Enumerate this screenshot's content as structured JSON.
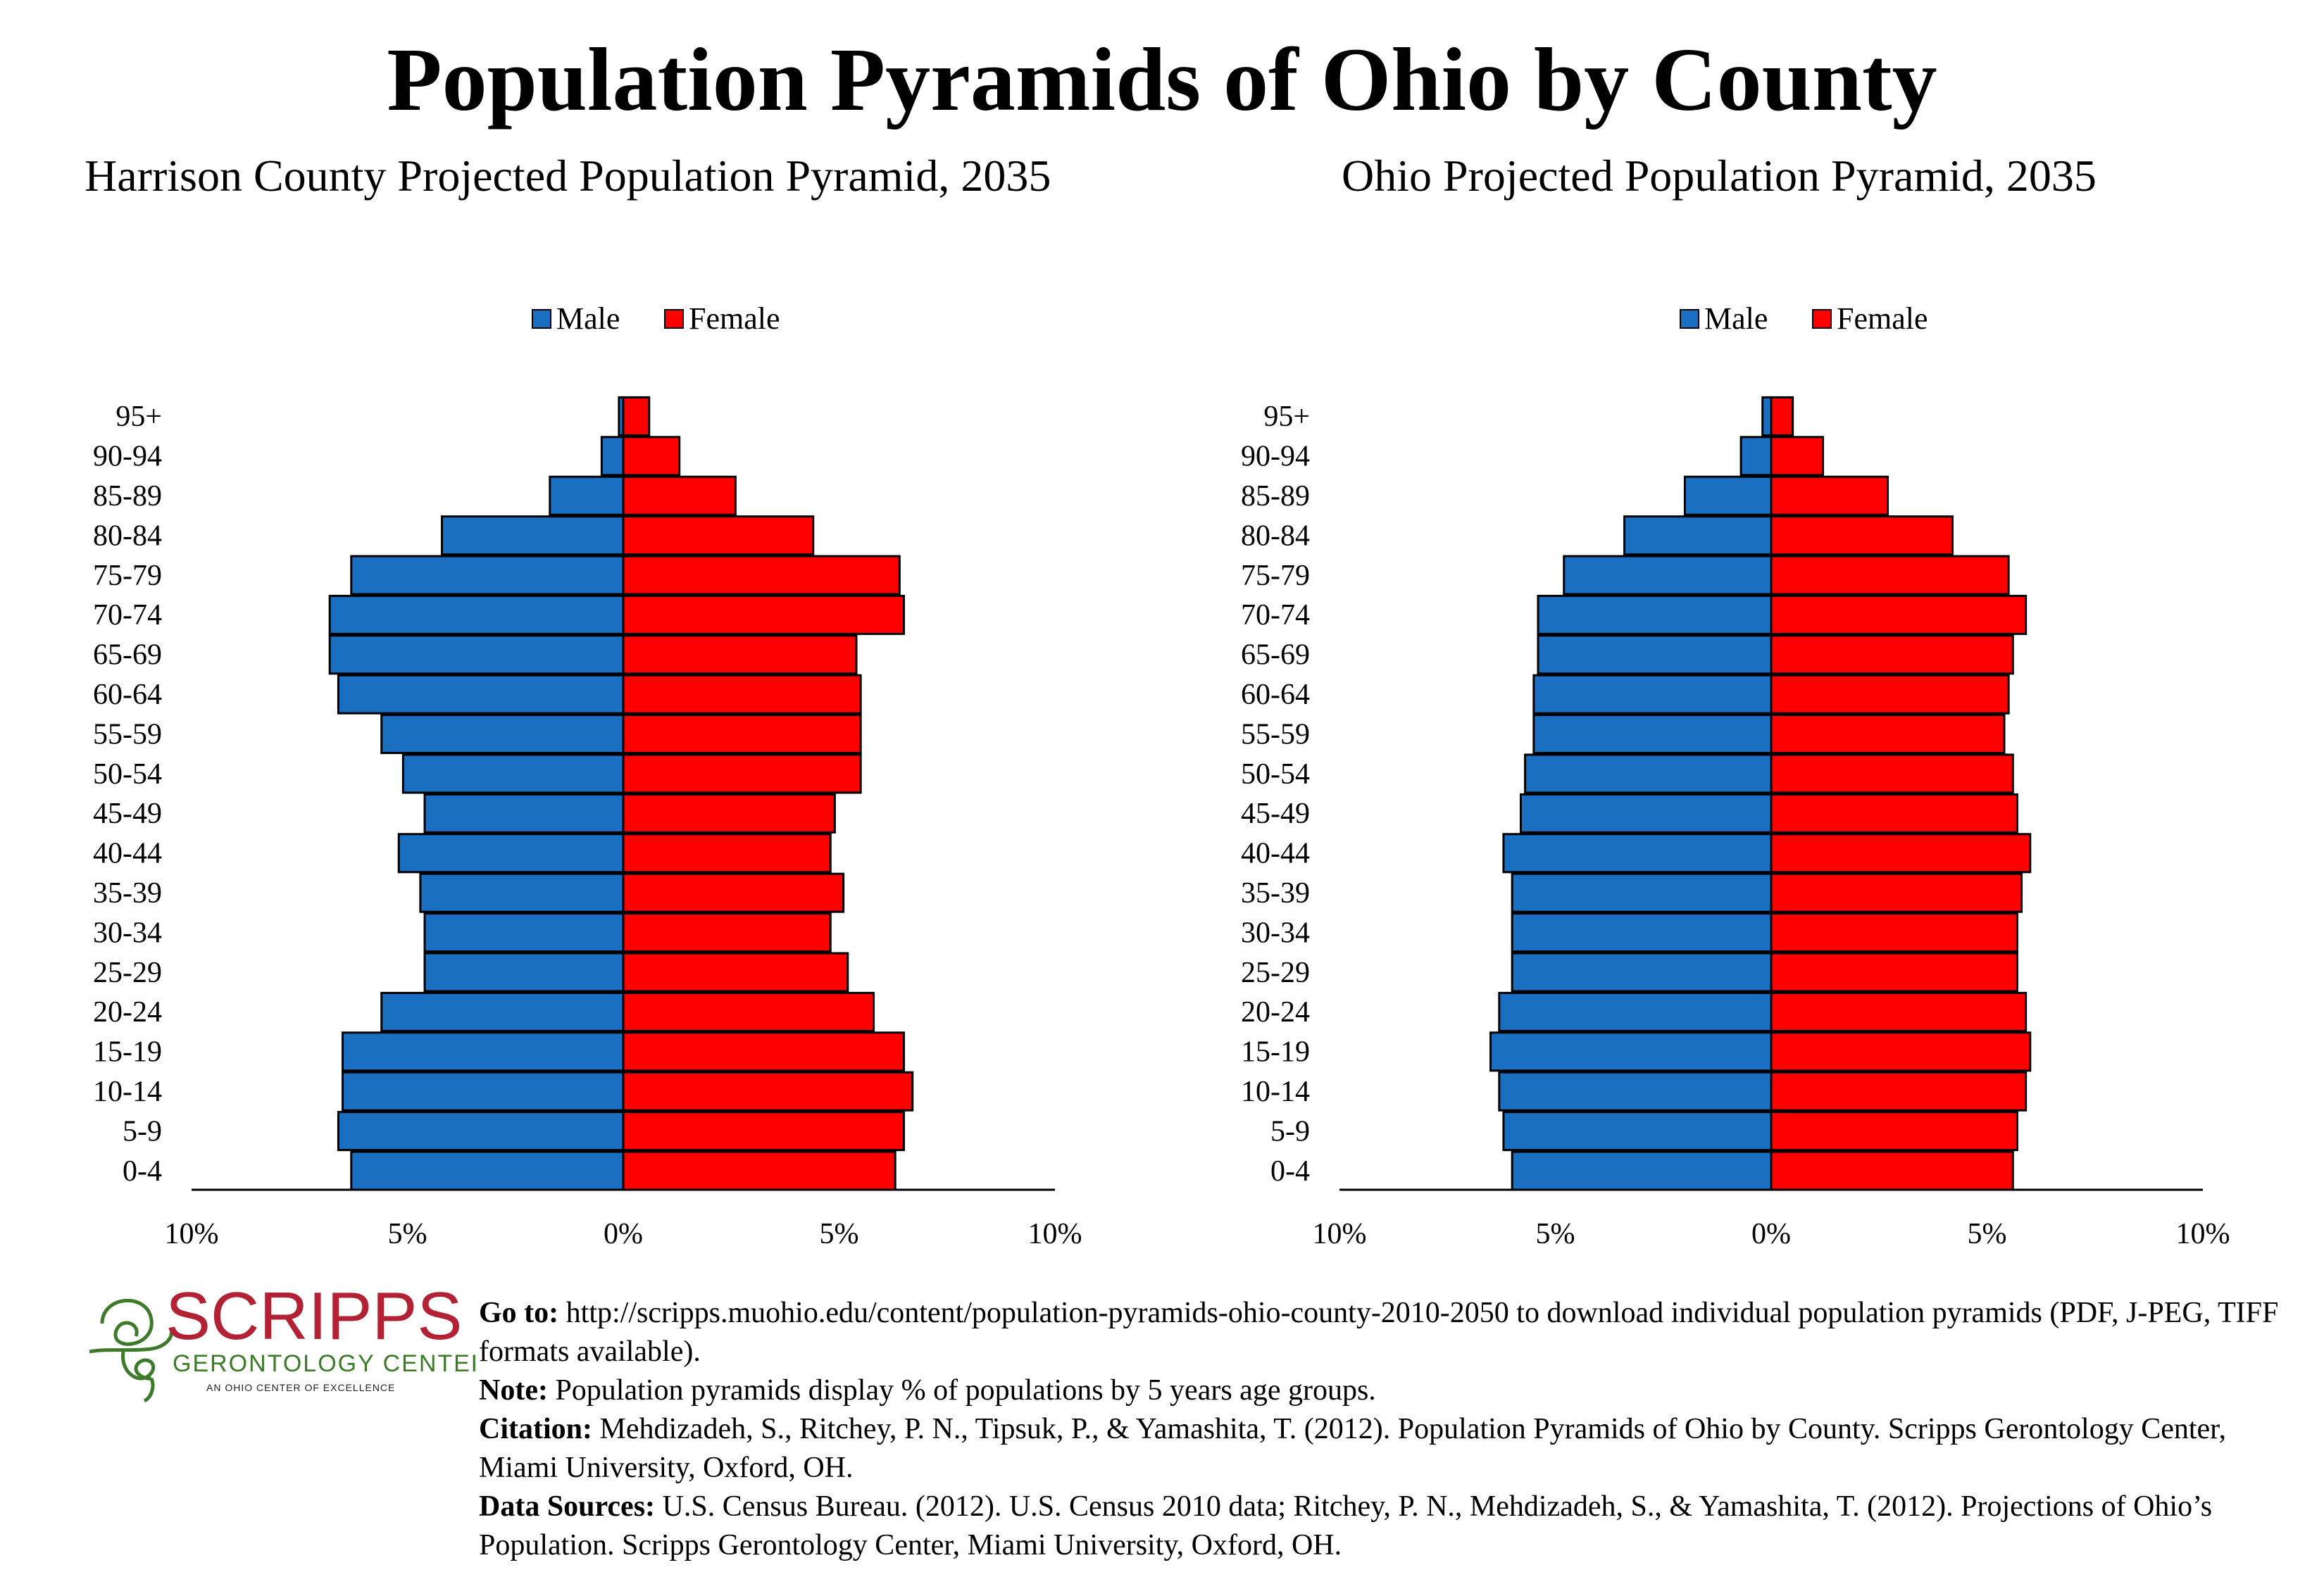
{
  "title": "Population Pyramids of Ohio by County",
  "colors": {
    "male": "#1a6fc1",
    "female": "#ff0000"
  },
  "charts": [
    {
      "subtitle": "Harrison County Projected Population Pyramid, 2035",
      "legend": {
        "male": "Male",
        "female": "Female"
      }
    },
    {
      "subtitle": "Ohio Projected Population Pyramid, 2035",
      "legend": {
        "male": "Male",
        "female": "Female"
      }
    }
  ],
  "chart_data": [
    {
      "type": "bar",
      "orientation": "horizontal-pyramid",
      "title": "Harrison County Projected Population Pyramid, 2035",
      "categories": [
        "0-4",
        "5-9",
        "10-14",
        "15-19",
        "20-24",
        "25-29",
        "30-34",
        "35-39",
        "40-44",
        "45-49",
        "50-54",
        "55-59",
        "60-64",
        "65-69",
        "70-74",
        "75-79",
        "80-84",
        "85-89",
        "90-94",
        "95+"
      ],
      "series": [
        {
          "name": "Male",
          "values": [
            6.3,
            6.6,
            6.5,
            6.5,
            5.6,
            4.6,
            4.6,
            4.7,
            5.2,
            4.6,
            5.1,
            5.6,
            6.6,
            6.8,
            6.8,
            6.3,
            4.2,
            1.7,
            0.5,
            0.1
          ]
        },
        {
          "name": "Female",
          "values": [
            6.3,
            6.5,
            6.7,
            6.5,
            5.8,
            5.2,
            4.8,
            5.1,
            4.8,
            4.9,
            5.5,
            5.5,
            5.5,
            5.4,
            6.5,
            6.4,
            4.4,
            2.6,
            1.3,
            0.6
          ]
        }
      ],
      "xlim": [
        -10,
        10
      ],
      "x_tick_labels": [
        "10%",
        "5%",
        "0%",
        "5%",
        "10%"
      ],
      "legend_position": "top-center"
    },
    {
      "type": "bar",
      "orientation": "horizontal-pyramid",
      "title": "Ohio Projected Population Pyramid, 2035",
      "categories": [
        "0-4",
        "5-9",
        "10-14",
        "15-19",
        "20-24",
        "25-29",
        "30-34",
        "35-39",
        "40-44",
        "45-49",
        "50-54",
        "55-59",
        "60-64",
        "65-69",
        "70-74",
        "75-79",
        "80-84",
        "85-89",
        "90-94",
        "95+"
      ],
      "series": [
        {
          "name": "Male",
          "values": [
            6.0,
            6.2,
            6.3,
            6.5,
            6.3,
            6.0,
            6.0,
            6.0,
            6.2,
            5.8,
            5.7,
            5.5,
            5.5,
            5.4,
            5.4,
            4.8,
            3.4,
            2.0,
            0.7,
            0.2
          ]
        },
        {
          "name": "Female",
          "values": [
            5.6,
            5.7,
            5.9,
            6.0,
            5.9,
            5.7,
            5.7,
            5.8,
            6.0,
            5.7,
            5.6,
            5.4,
            5.5,
            5.6,
            5.9,
            5.5,
            4.2,
            2.7,
            1.2,
            0.5
          ]
        }
      ],
      "xlim": [
        -10,
        10
      ],
      "x_tick_labels": [
        "10%",
        "5%",
        "0%",
        "5%",
        "10%"
      ],
      "legend_position": "top-center"
    }
  ],
  "logo": {
    "name": "SCRIPPS",
    "line2": "GERONTOLOGY CENTER",
    "line3": "AN OHIO CENTER OF EXCELLENCE",
    "color_red": "#b22234",
    "color_green": "#3d7a2a"
  },
  "notes": {
    "goto_label": "Go to:",
    "goto_text": "http://scripps.muohio.edu/content/population-pyramids-ohio-county-2010-2050 to download individual population pyramids (PDF, J-PEG, TIFF formats available).",
    "note_label": "Note:",
    "note_text": "Population pyramids display % of populations by 5 years age groups.",
    "citation_label": "Citation:",
    "citation_text": "Mehdizadeh, S., Ritchey, P. N., Tipsuk, P., & Yamashita, T. (2012). Population Pyramids of Ohio by County. Scripps Gerontology Center, Miami University, Oxford, OH.",
    "sources_label": "Data Sources:",
    "sources_text": "U.S. Census Bureau. (2012). U.S. Census 2010 data; Ritchey, P. N., Mehdizadeh, S., & Yamashita, T. (2012). Projections of Ohio’s Population. Scripps Gerontology Center, Miami University, Oxford, OH."
  }
}
